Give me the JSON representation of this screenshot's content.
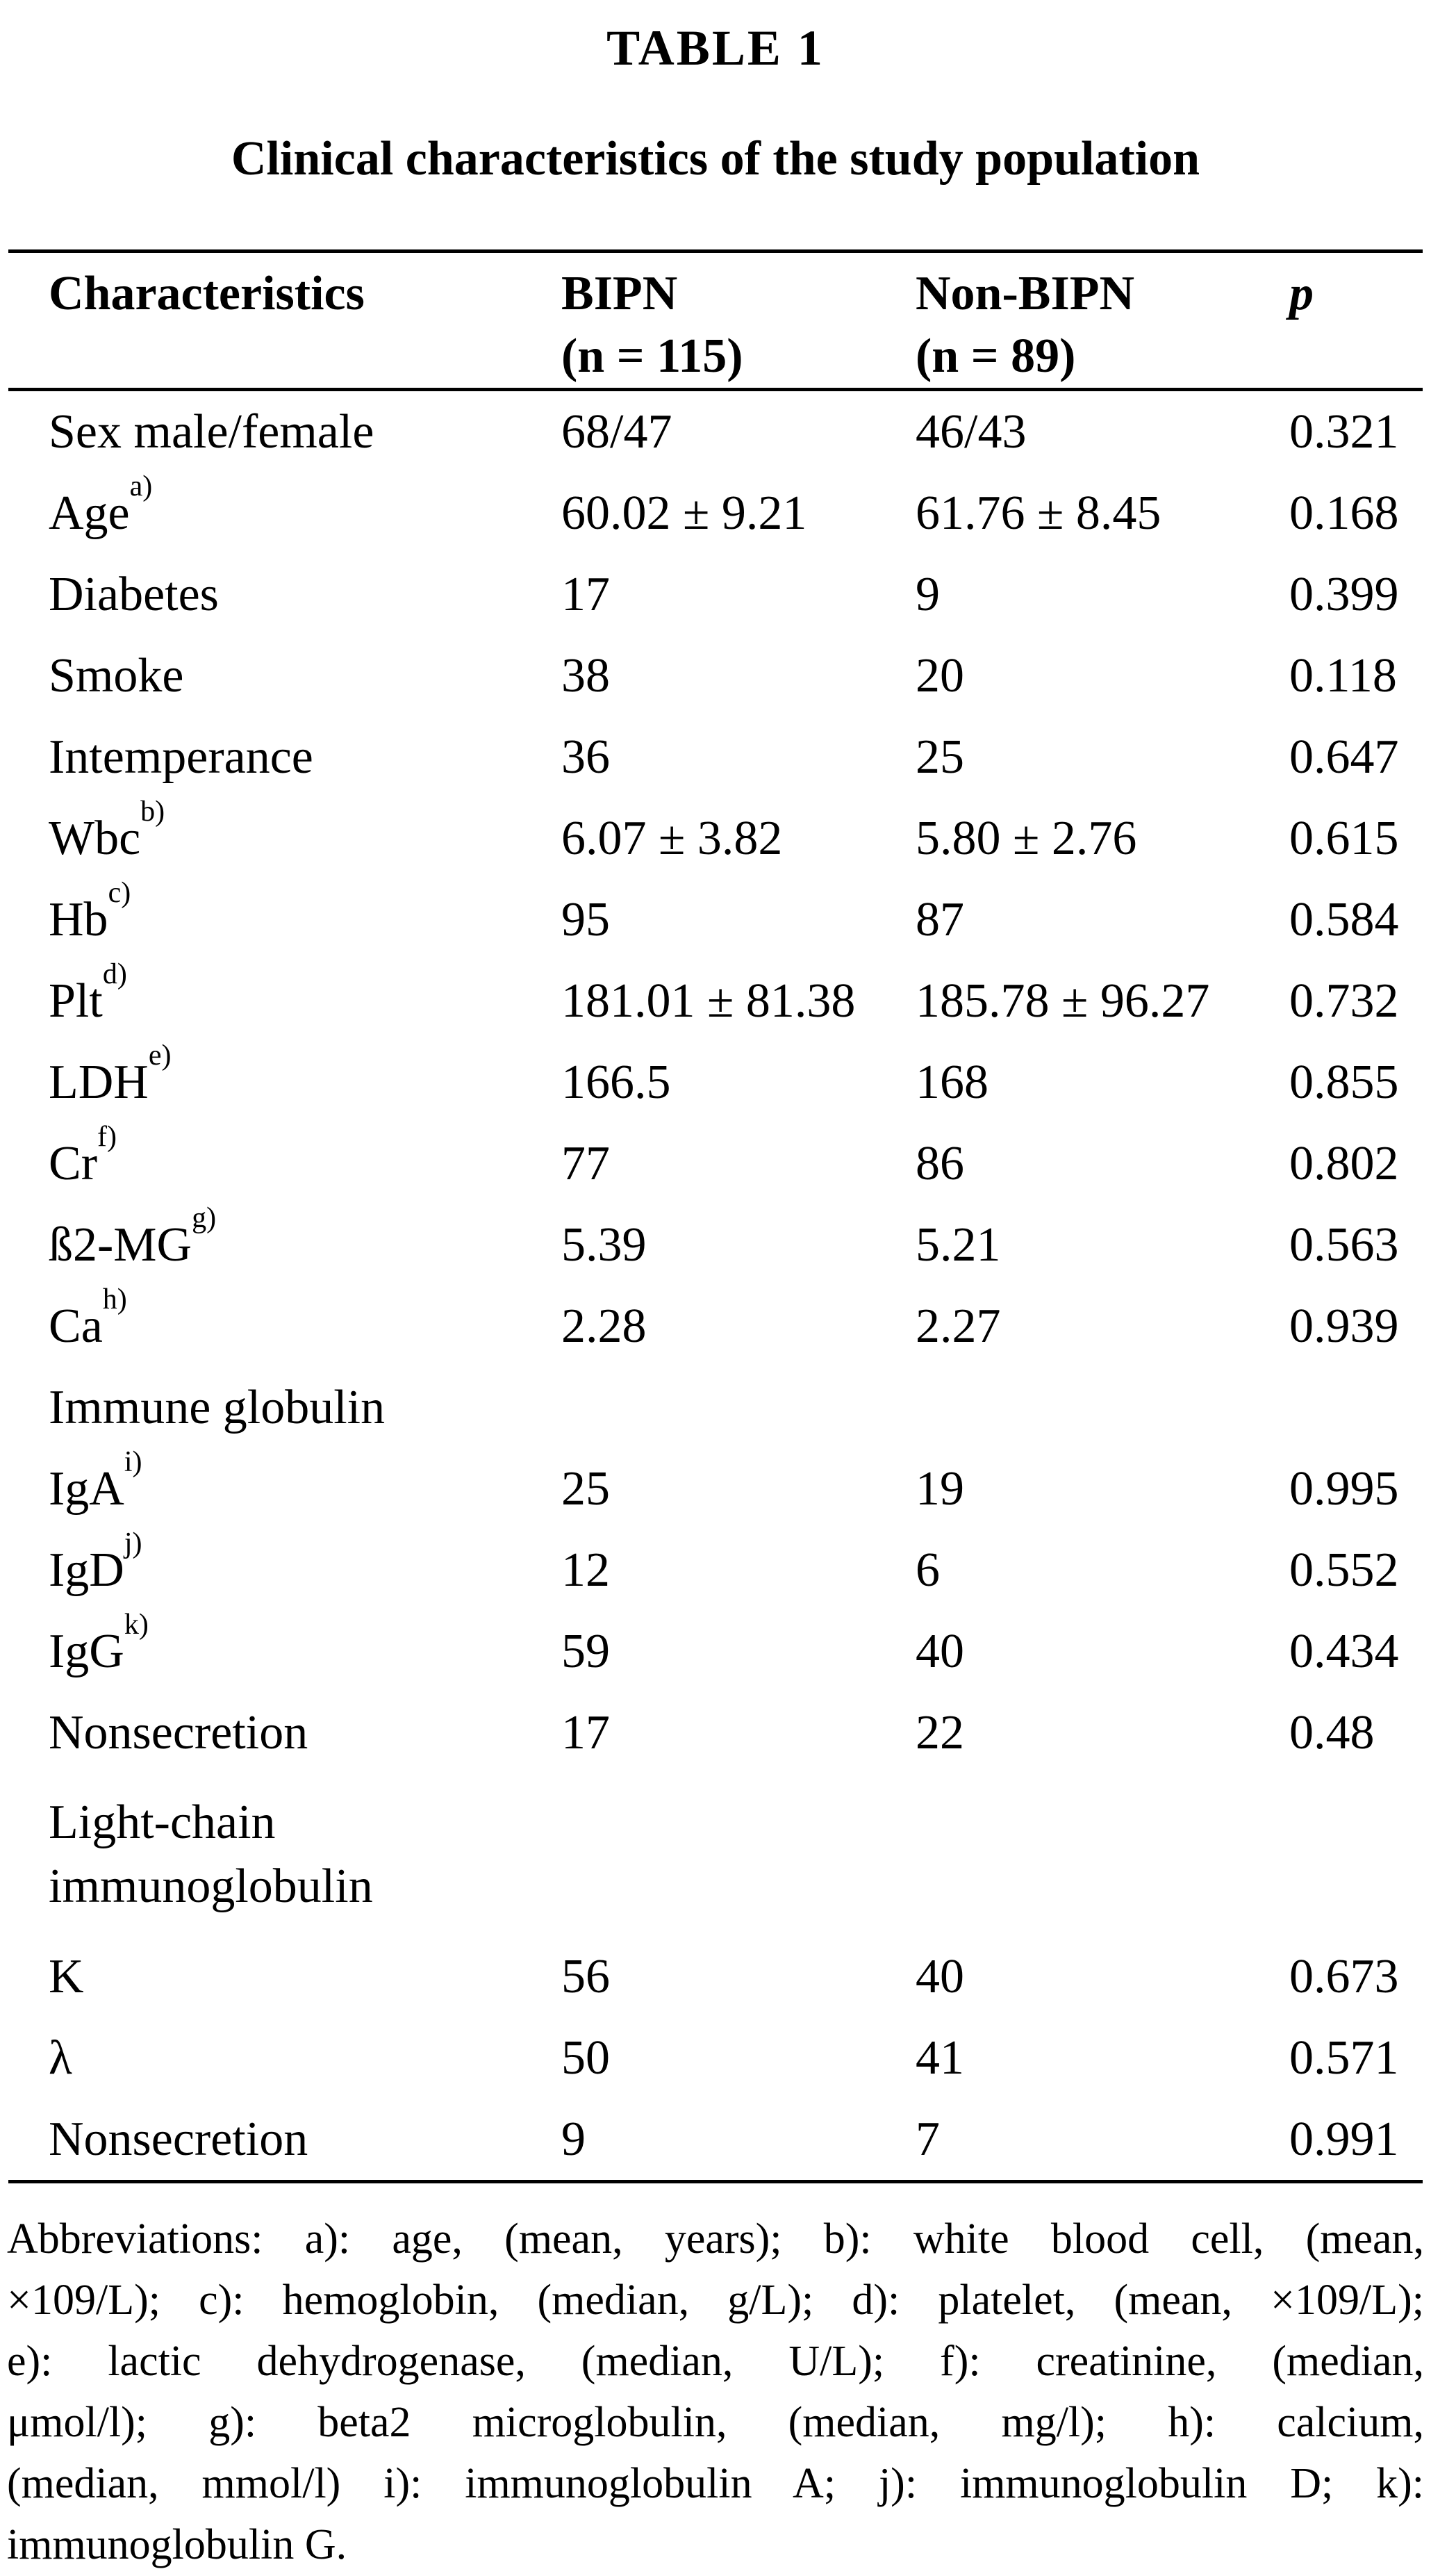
{
  "colors": {
    "text": "#000000",
    "background": "#ffffff"
  },
  "header": {
    "table_number": "TABLE 1",
    "table_title": "Clinical characteristics of the study population"
  },
  "columns": {
    "characteristics": "Characteristics",
    "bipn_line1": "BIPN",
    "bipn_line2": "(n = 115)",
    "nonbipn_line1": "Non-BIPN",
    "nonbipn_line2": "(n = 89)",
    "p": "p"
  },
  "rows": [
    {
      "label": "Sex male/female",
      "sup": "",
      "bipn": "68/47",
      "nonbipn": "46/43",
      "p": "0.321"
    },
    {
      "label": "Age",
      "sup": "a)",
      "bipn": "60.02 ± 9.21",
      "nonbipn": "61.76 ± 8.45",
      "p": "0.168"
    },
    {
      "label": "Diabetes",
      "sup": "",
      "bipn": "17",
      "nonbipn": "9",
      "p": "0.399"
    },
    {
      "label": "Smoke",
      "sup": "",
      "bipn": "38",
      "nonbipn": "20",
      "p": "0.118"
    },
    {
      "label": "Intemperance",
      "sup": "",
      "bipn": "36",
      "nonbipn": "25",
      "p": "0.647"
    },
    {
      "label": "Wbc",
      "sup": "b)",
      "bipn": "6.07 ± 3.82",
      "nonbipn": "5.80 ± 2.76",
      "p": "0.615"
    },
    {
      "label": "Hb",
      "sup": "c)",
      "bipn": "95",
      "nonbipn": "87",
      "p": "0.584"
    },
    {
      "label": "Plt",
      "sup": "d)",
      "bipn": "181.01 ± 81.38",
      "nonbipn": "185.78 ± 96.27",
      "p": "0.732"
    },
    {
      "label": "LDH",
      "sup": "e)",
      "bipn": "166.5",
      "nonbipn": "168",
      "p": "0.855"
    },
    {
      "label": "Cr",
      "sup": "f)",
      "bipn": "77",
      "nonbipn": "86",
      "p": "0.802"
    },
    {
      "label": "ß2-MG",
      "sup": "g)",
      "bipn": "5.39",
      "nonbipn": "5.21",
      "p": "0.563"
    },
    {
      "label": "Ca",
      "sup": "h)",
      "bipn": "2.28",
      "nonbipn": "2.27",
      "p": "0.939"
    },
    {
      "label": "Immune globulin",
      "sup": "",
      "bipn": "",
      "nonbipn": "",
      "p": ""
    },
    {
      "label": "IgA",
      "sup": "i)",
      "bipn": "25",
      "nonbipn": "19",
      "p": "0.995"
    },
    {
      "label": "IgD",
      "sup": "j)",
      "bipn": "12",
      "nonbipn": "6",
      "p": "0.552"
    },
    {
      "label": "IgG",
      "sup": "k)",
      "bipn": "59",
      "nonbipn": "40",
      "p": "0.434"
    },
    {
      "label": "Nonsecretion",
      "sup": "",
      "bipn": "17",
      "nonbipn": "22",
      "p": "0.48"
    },
    {
      "label": "Light-chain immunoglobulin",
      "sup": "",
      "bipn": "",
      "nonbipn": "",
      "p": ""
    },
    {
      "label": "K",
      "sup": "",
      "bipn": "56",
      "nonbipn": "40",
      "p": "0.673"
    },
    {
      "label": "λ",
      "sup": "",
      "bipn": "50",
      "nonbipn": "41",
      "p": "0.571"
    },
    {
      "label": "Nonsecretion",
      "sup": "",
      "bipn": "9",
      "nonbipn": "7",
      "p": "0.991"
    }
  ],
  "footnote": {
    "lines": [
      "Abbreviations: a): age, (mean, years); b): white blood cell, (mean,",
      "×109/L); c): hemoglobin, (median, g/L); d): platelet, (mean, ×109/L);",
      "e): lactic dehydrogenase, (median, U/L); f): creatinine, (median,",
      "μmol/l); g): beta2 microglobulin, (median, mg/l); h): calcium,",
      "(median, mmol/l) i): immunoglobulin A; j): immunoglobulin D; k):",
      "immunoglobulin G."
    ]
  }
}
